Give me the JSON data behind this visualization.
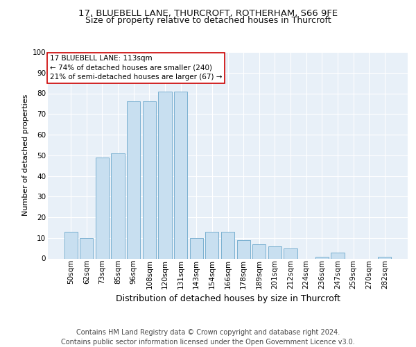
{
  "title_line1": "17, BLUEBELL LANE, THURCROFT, ROTHERHAM, S66 9FE",
  "title_line2": "Size of property relative to detached houses in Thurcroft",
  "xlabel": "Distribution of detached houses by size in Thurcroft",
  "ylabel": "Number of detached properties",
  "categories": [
    "50sqm",
    "62sqm",
    "73sqm",
    "85sqm",
    "96sqm",
    "108sqm",
    "120sqm",
    "131sqm",
    "143sqm",
    "154sqm",
    "166sqm",
    "178sqm",
    "189sqm",
    "201sqm",
    "212sqm",
    "224sqm",
    "236sqm",
    "247sqm",
    "259sqm",
    "270sqm",
    "282sqm"
  ],
  "values": [
    13,
    10,
    49,
    51,
    76,
    76,
    81,
    81,
    10,
    13,
    13,
    9,
    7,
    6,
    5,
    0,
    1,
    3,
    0,
    0,
    1
  ],
  "bar_color": "#c8dff0",
  "bar_edge_color": "#7ab0d0",
  "bg_color": "#e8f0f8",
  "grid_color": "#ffffff",
  "annotation_box_text": "17 BLUEBELL LANE: 113sqm\n← 74% of detached houses are smaller (240)\n21% of semi-detached houses are larger (67) →",
  "annotation_box_color": "#ffffff",
  "annotation_box_edge_color": "#cc0000",
  "ylim": [
    0,
    100
  ],
  "yticks": [
    0,
    10,
    20,
    30,
    40,
    50,
    60,
    70,
    80,
    90,
    100
  ],
  "footer_text": "Contains HM Land Registry data © Crown copyright and database right 2024.\nContains public sector information licensed under the Open Government Licence v3.0.",
  "title_fontsize": 9.5,
  "subtitle_fontsize": 9,
  "xlabel_fontsize": 9,
  "ylabel_fontsize": 8,
  "tick_fontsize": 7.5,
  "annotation_fontsize": 7.5,
  "footer_fontsize": 7
}
